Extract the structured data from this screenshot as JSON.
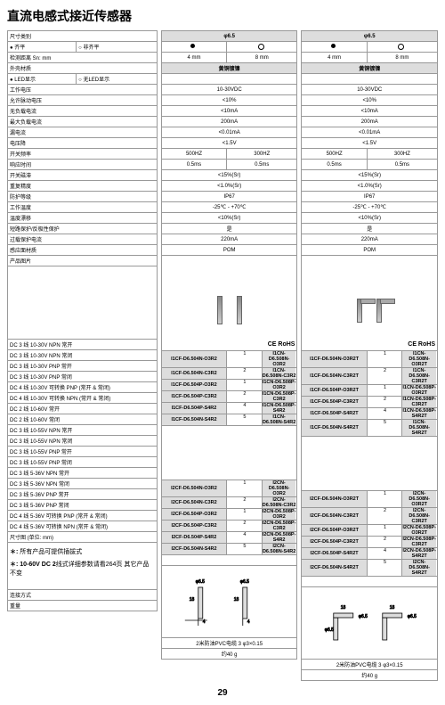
{
  "title": "直流电感式接近传感器",
  "leftSpec": {
    "header": "尺寸类别",
    "rows": [
      {
        "l": "● 齐平",
        "r": "○ 非齐平"
      },
      {
        "l": "检测距离 Sn: mm",
        "r": ""
      },
      {
        "l": "外壳材质",
        "r": ""
      },
      {
        "l": "● LED显示",
        "r": "○ 无LED显示"
      },
      {
        "l": "工作电压",
        "r": ""
      },
      {
        "l": "允许脉动电压",
        "r": ""
      },
      {
        "l": "无负载电流",
        "r": ""
      },
      {
        "l": "最大负载电流",
        "r": ""
      },
      {
        "l": "漏电流",
        "r": ""
      },
      {
        "l": "电压降",
        "r": ""
      },
      {
        "l": "开关频率",
        "r": ""
      },
      {
        "l": "响应时间",
        "r": ""
      },
      {
        "l": "开关磁滞",
        "r": ""
      },
      {
        "l": "重复精度",
        "r": ""
      },
      {
        "l": "防护等级",
        "r": ""
      },
      {
        "l": "工作温度",
        "r": ""
      },
      {
        "l": "温度漂移",
        "r": ""
      },
      {
        "l": "短路保护/反极性保护",
        "r": ""
      },
      {
        "l": "过载保护电流",
        "r": ""
      },
      {
        "l": "感应面材质",
        "r": ""
      }
    ],
    "prodImgLabel": "产品图片",
    "variants": [
      "DC 3 线 10-30V NPN 常开",
      "DC 3 线 10-30V NPN 常闭",
      "DC 3 线 10-30V PNP 常开",
      "DC 3 线 10-30V PNP 常闭",
      "DC 4 线 10-30V 可转换 PNP (常开 & 常闭)",
      "DC 4 线 10-30V 可转换 NPN (常开 & 常闭)",
      "DC 2 线 10-60V 常开",
      "DC 2 线 10-60V 常闭",
      "DC 3 线 10-55V NPN 常开",
      "DC 3 线 10-55V NPN 常闭",
      "DC 3 线 10-55V PNP 常开",
      "DC 3 线 10-55V PNP 常闭",
      "DC 3 线 5-36V NPN 常开",
      "DC 3 线 5-36V NPN 常闭",
      "DC 3 线 5-36V PNP 常开",
      "DC 3 线 5-36V PNP 常闭",
      "DC 4 线 5-36V 可转换 PNP (常开 & 常闭)",
      "DC 4 线 5-36V 可转换 NPN (常开 & 常闭)"
    ],
    "dimLabel": "尺寸图 (单位: mm)",
    "note1": "所有产品可提供插拔式",
    "note2a": "10-60V DC 2",
    "note2b": "线式详细参数请看264页 其它产品不变",
    "connLabel": "连接方式",
    "weightLabel": "重量"
  },
  "specCols": [
    {
      "diam": "φ6.5",
      "mm": [
        "4 mm",
        "8 mm"
      ],
      "mat": "黄铜镀镍",
      "vals": [
        "10-30VDC",
        "<10%",
        "<10mA",
        "200mA",
        "<0.01mA",
        "<1.5V"
      ],
      "freq": [
        "500HZ",
        "300HZ"
      ],
      "resp": [
        "0.5ms",
        "0.5ms"
      ],
      "vals2": [
        "<15%(Sr)",
        "<1.0%(Sr)",
        "IP67",
        "-25℃ - +70℃",
        "<10%(Sr)",
        "是",
        "220mA",
        "POM"
      ],
      "ce": "CE RoHS",
      "models1": [
        [
          "I1CF-D6.504N-O3R2",
          "1",
          "I1CN-D6.508N-O3R2"
        ],
        [
          "I1CF-D6.504N-C3R2",
          "2",
          "I1CN-D6.508N-C3R2"
        ],
        [
          "I1CF-D6.504P-O3R2",
          "1",
          "I1CN-D6.508P-O3R2"
        ],
        [
          "I1CF-D6.504P-C3R2",
          "2",
          "I1CN-D6.508P-C3R2"
        ],
        [
          "I1CF-D6.504P-S4R2",
          "4",
          "I1CN-D6.508P-S4R2"
        ],
        [
          "I1CF-D6.504N-S4R2",
          "5",
          "I1CN-D6.508N-S4R2"
        ]
      ],
      "models2": [
        [
          "I2CF-D6.504N-O3R2",
          "1",
          "I2CN-D6.508N-O3R2"
        ],
        [
          "I2CF-D6.504N-C3R2",
          "2",
          "I2CN-D6.508N-C3R2"
        ],
        [
          "I2CF-D6.504P-O3R2",
          "1",
          "I2CN-D6.508P-O3R2"
        ],
        [
          "I2CF-D6.504P-C3R2",
          "2",
          "I2CN-D6.508P-C3R2"
        ],
        [
          "I2CF-D6.504P-S4R2",
          "4",
          "I2CN-D6.508P-S4R2"
        ],
        [
          "I2CF-D6.504N-S4R2",
          "5",
          "I2CN-D6.508N-S4R2"
        ]
      ],
      "cable": "2米防油PVC电缆  3 φ3×0.15",
      "weight": "约40 g",
      "dim": {
        "d": "φ6.5",
        "h": "18",
        "h2": "4"
      }
    },
    {
      "diam": "φ6.5",
      "mm": [
        "4 mm",
        "8 mm"
      ],
      "mat": "黄铜镀镍",
      "vals": [
        "10-30VDC",
        "<10%",
        "<10mA",
        "200mA",
        "<0.01mA",
        "<1.5V"
      ],
      "freq": [
        "500HZ",
        "300HZ"
      ],
      "resp": [
        "0.5ms",
        "0.5ms"
      ],
      "vals2": [
        "<15%(Sr)",
        "<1.0%(Sr)",
        "IP67",
        "-25℃ - +70℃",
        "<10%(Sr)",
        "是",
        "220mA",
        "POM"
      ],
      "ce": "CE RoHS",
      "models1": [
        [
          "I1CF-D6.504N-O3R2T",
          "1",
          "I1CN-D6.508N-O3R2T"
        ],
        [
          "I1CF-D6.504N-C3R2T",
          "2",
          "I1CN-D6.508N-C3R2T"
        ],
        [
          "I1CF-D6.504P-O3R2T",
          "1",
          "I1CN-D6.508P-O3R2T"
        ],
        [
          "I1CF-D6.504P-C3R2T",
          "2",
          "I1CN-D6.508P-C3R2T"
        ],
        [
          "I1CF-D6.504P-S4R2T",
          "4",
          "I1CN-D6.508P-S4R2T"
        ],
        [
          "I1CF-D6.504N-S4R2T",
          "5",
          "I1CN-D6.508N-S4R2T"
        ]
      ],
      "models2": [
        [
          "I2CF-D6.504N-O3R2T",
          "1",
          "I2CN-D6.508N-O3R2T"
        ],
        [
          "I2CF-D6.504N-C3R2T",
          "2",
          "I2CN-D6.508N-C3R2T"
        ],
        [
          "I2CF-D6.504P-O3R2T",
          "1",
          "I2CN-D6.508P-O3R2T"
        ],
        [
          "I2CF-D6.504P-C3R2T",
          "2",
          "I2CN-D6.508P-C3R2T"
        ],
        [
          "I2CF-D6.504P-S4R2T",
          "4",
          "I2CN-D6.508P-S4R2T"
        ],
        [
          "I2CF-D6.504N-S4R2T",
          "5",
          "I2CN-D6.508N-S4R2T"
        ]
      ],
      "cable": "2米防油PVC电缆  3 φ3×0.15",
      "weight": "约40 g",
      "dim": {
        "d": "φ6.5",
        "h": "18",
        "h2": "18"
      }
    }
  ],
  "pageNum": "29"
}
